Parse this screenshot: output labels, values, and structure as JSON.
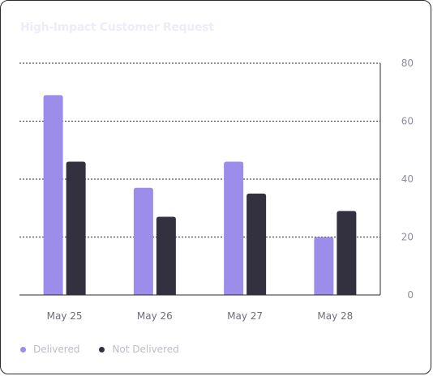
{
  "chart_data": {
    "type": "bar",
    "title": "High-Impact Customer Request",
    "categories": [
      "May 25",
      "May 26",
      "May 27",
      "May 28"
    ],
    "series": [
      {
        "name": "Delivered",
        "color": "#9b8de9",
        "values": [
          69,
          37,
          46,
          20
        ]
      },
      {
        "name": "Not Delivered",
        "color": "#33303f",
        "values": [
          46,
          27,
          35,
          29
        ]
      }
    ],
    "ylim": [
      0,
      80
    ],
    "yticks": [
      0,
      20,
      40,
      60,
      80
    ],
    "y_axis_position": "right",
    "grid": true,
    "legend_position": "bottom-left"
  }
}
